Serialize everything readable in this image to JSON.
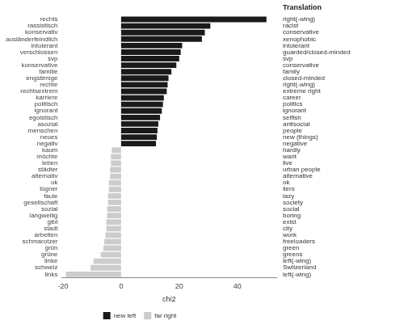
{
  "chart_data": {
    "type": "bar",
    "orientation": "horizontal",
    "xlabel": "chi2",
    "categories": [
      "rechts",
      "rassistisch",
      "konservativ",
      "ausländerfeindlich",
      "intolerant",
      "verschlossen",
      "svp",
      "konservative",
      "familie",
      "engstirnige",
      "rechte",
      "rechtsextrem",
      "karriere",
      "politisch",
      "ignorant",
      "egoistisch",
      "asozial",
      "menschen",
      "neues",
      "negativ",
      "kaum",
      "möchte",
      "leben",
      "städter",
      "alternativ",
      "ok",
      "lügner",
      "faule",
      "gesellschaft",
      "sozial",
      "langweilig",
      "gibt",
      "stadt",
      "arbeiten",
      "schmarotzer",
      "grün",
      "grüne",
      "linke",
      "schweiz",
      "links"
    ],
    "series": [
      {
        "name": "new left",
        "color": "#1a1a1a",
        "values": [
          50,
          30.7,
          28.8,
          27.8,
          21,
          20.5,
          20,
          19,
          17.3,
          16.3,
          16,
          15.7,
          14.7,
          14.4,
          14,
          13.4,
          12.8,
          12.5,
          12.3,
          12,
          null,
          null,
          null,
          null,
          null,
          null,
          null,
          null,
          null,
          null,
          null,
          null,
          null,
          null,
          null,
          null,
          null,
          null,
          null,
          null
        ]
      },
      {
        "name": "far right",
        "color": "#cccccc",
        "values": [
          null,
          null,
          null,
          null,
          null,
          null,
          null,
          null,
          null,
          null,
          null,
          null,
          null,
          null,
          null,
          null,
          null,
          null,
          null,
          null,
          -3.2,
          -3.5,
          -3.5,
          -3.8,
          -3.8,
          -4.2,
          -4.2,
          -4.5,
          -4.5,
          -4.8,
          -4.8,
          -5.1,
          -5.1,
          -5.4,
          -5.8,
          -6.1,
          -7,
          -9.5,
          -10.5,
          -19
        ]
      }
    ],
    "translation_title": "Translation",
    "translations": [
      "right(-wing)",
      "racist",
      "conservative",
      "xenophobic",
      "intolerant",
      "guarded/closed-minded",
      "svp",
      "conservative",
      "family",
      "closed-minded",
      "right(-wing)",
      "extreme right",
      "career",
      "politics",
      "ignorant",
      "selfish",
      "antisocial",
      "people",
      "new (things)",
      "negative",
      "hardly",
      "want",
      "live",
      "urban people",
      "alternative",
      "ok",
      "liers",
      "lazy",
      "society",
      "social",
      "boring",
      "exist",
      "city",
      "work",
      "freeloaders",
      "green",
      "greens",
      "left(-wing)",
      "Switzerland",
      "left(-wing)"
    ],
    "xlim": [
      -20.4,
      53.4
    ],
    "xticks": [
      -20,
      0,
      20,
      40
    ],
    "grid": false,
    "legend": "bottom"
  }
}
